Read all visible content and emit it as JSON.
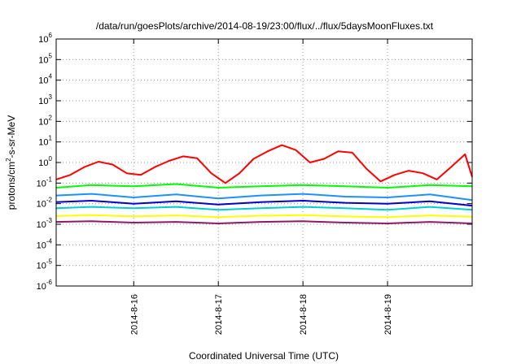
{
  "chart_data": {
    "type": "line",
    "title": "/data/run/goesPlots/archive/2014-08-19/23:00/flux/../flux/5daysMoonFluxes.txt",
    "xlabel": "Coordinated Universal Time (UTC)",
    "ylabel": "protons/cm²-s-sr-MeV",
    "ylabel_parts": {
      "before": "protons/cm",
      "sup": "2",
      "after": "-s-sr-MeV"
    },
    "yscale": "log",
    "ylim": [
      1e-06,
      1000000.0
    ],
    "y_ticks": [
      {
        "base": "10",
        "exp": "6"
      },
      {
        "base": "10",
        "exp": "5"
      },
      {
        "base": "10",
        "exp": "4"
      },
      {
        "base": "10",
        "exp": "3"
      },
      {
        "base": "10",
        "exp": "2"
      },
      {
        "base": "10",
        "exp": "1"
      },
      {
        "base": "10",
        "exp": "0"
      },
      {
        "base": "10",
        "exp": "-1"
      },
      {
        "base": "10",
        "exp": "-2"
      },
      {
        "base": "10",
        "exp": "-3"
      },
      {
        "base": "10",
        "exp": "-4"
      },
      {
        "base": "10",
        "exp": "-5"
      },
      {
        "base": "10",
        "exp": "-6"
      }
    ],
    "x_start": "2014-08-15 02:00",
    "x_end": "2014-08-20 00:00",
    "x_tick_labels": [
      "2014-8-16",
      "2014-8-17",
      "2014-8-18",
      "2014-8-19"
    ],
    "x_tick_dates": [
      "2014-08-16 00:00",
      "2014-08-17 00:00",
      "2014-08-18 00:00",
      "2014-08-19 00:00"
    ],
    "grid": true,
    "legend": "none",
    "series": [
      {
        "color": "#ff0000",
        "x": [
          "2014-08-15 02:00",
          "2014-08-15 06:00",
          "2014-08-15 10:00",
          "2014-08-15 14:00",
          "2014-08-15 18:00",
          "2014-08-15 22:00",
          "2014-08-16 02:00",
          "2014-08-16 06:00",
          "2014-08-16 10:00",
          "2014-08-16 14:00",
          "2014-08-16 18:00",
          "2014-08-16 22:00",
          "2014-08-17 02:00",
          "2014-08-17 06:00",
          "2014-08-17 10:00",
          "2014-08-17 14:00",
          "2014-08-17 18:00",
          "2014-08-17 22:00",
          "2014-08-18 02:00",
          "2014-08-18 06:00",
          "2014-08-18 10:00",
          "2014-08-18 14:00",
          "2014-08-18 18:00",
          "2014-08-18 22:00",
          "2014-08-19 02:00",
          "2014-08-19 06:00",
          "2014-08-19 10:00",
          "2014-08-19 14:00",
          "2014-08-19 18:00",
          "2014-08-19 22:00",
          "2014-08-20 00:00"
        ],
        "y": [
          0.15,
          0.25,
          0.6,
          1.1,
          0.8,
          0.3,
          0.25,
          0.6,
          1.2,
          2.0,
          1.6,
          0.3,
          0.1,
          0.3,
          1.5,
          3.5,
          7,
          4,
          1.0,
          1.5,
          3.5,
          3.0,
          0.5,
          0.12,
          0.25,
          0.4,
          0.3,
          0.15,
          0.6,
          2.5,
          0.2
        ]
      },
      {
        "color": "#00ff00",
        "x": [
          "2014-08-15 02:00",
          "2014-08-15 12:00",
          "2014-08-16 00:00",
          "2014-08-16 12:00",
          "2014-08-17 00:00",
          "2014-08-17 12:00",
          "2014-08-18 00:00",
          "2014-08-18 12:00",
          "2014-08-19 00:00",
          "2014-08-19 12:00",
          "2014-08-20 00:00"
        ],
        "y": [
          0.06,
          0.08,
          0.07,
          0.09,
          0.06,
          0.07,
          0.08,
          0.07,
          0.06,
          0.08,
          0.07
        ]
      },
      {
        "color": "#1e90ff",
        "x": [
          "2014-08-15 02:00",
          "2014-08-15 12:00",
          "2014-08-16 00:00",
          "2014-08-16 12:00",
          "2014-08-17 00:00",
          "2014-08-17 12:00",
          "2014-08-18 00:00",
          "2014-08-18 12:00",
          "2014-08-19 00:00",
          "2014-08-19 12:00",
          "2014-08-20 00:00"
        ],
        "y": [
          0.025,
          0.03,
          0.02,
          0.028,
          0.018,
          0.025,
          0.03,
          0.022,
          0.02,
          0.028,
          0.015
        ]
      },
      {
        "color": "#0000cd",
        "x": [
          "2014-08-15 02:00",
          "2014-08-15 12:00",
          "2014-08-16 00:00",
          "2014-08-16 12:00",
          "2014-08-17 00:00",
          "2014-08-17 12:00",
          "2014-08-18 00:00",
          "2014-08-18 12:00",
          "2014-08-19 00:00",
          "2014-08-19 12:00",
          "2014-08-20 00:00"
        ],
        "y": [
          0.012,
          0.014,
          0.01,
          0.013,
          0.009,
          0.012,
          0.014,
          0.011,
          0.01,
          0.013,
          0.008
        ]
      },
      {
        "color": "#00ced1",
        "x": [
          "2014-08-15 02:00",
          "2014-08-15 12:00",
          "2014-08-16 00:00",
          "2014-08-16 12:00",
          "2014-08-17 00:00",
          "2014-08-17 12:00",
          "2014-08-18 00:00",
          "2014-08-18 12:00",
          "2014-08-19 00:00",
          "2014-08-19 12:00",
          "2014-08-20 00:00"
        ],
        "y": [
          0.006,
          0.007,
          0.006,
          0.007,
          0.005,
          0.006,
          0.007,
          0.006,
          0.005,
          0.007,
          0.005
        ]
      },
      {
        "color": "#ffff00",
        "x": [
          "2014-08-15 02:00",
          "2014-08-15 12:00",
          "2014-08-16 00:00",
          "2014-08-16 12:00",
          "2014-08-17 00:00",
          "2014-08-17 12:00",
          "2014-08-18 00:00",
          "2014-08-18 12:00",
          "2014-08-19 00:00",
          "2014-08-19 12:00",
          "2014-08-20 00:00"
        ],
        "y": [
          0.0025,
          0.0028,
          0.0024,
          0.0027,
          0.0022,
          0.0026,
          0.0028,
          0.0024,
          0.0022,
          0.0027,
          0.0023
        ]
      },
      {
        "color": "#8b1a6b",
        "x": [
          "2014-08-15 02:00",
          "2014-08-15 12:00",
          "2014-08-16 00:00",
          "2014-08-16 12:00",
          "2014-08-17 00:00",
          "2014-08-17 12:00",
          "2014-08-18 00:00",
          "2014-08-18 12:00",
          "2014-08-19 00:00",
          "2014-08-19 12:00",
          "2014-08-20 00:00"
        ],
        "y": [
          0.0013,
          0.0014,
          0.0012,
          0.0013,
          0.0011,
          0.0013,
          0.0014,
          0.0012,
          0.0011,
          0.0013,
          0.0011
        ]
      }
    ]
  }
}
